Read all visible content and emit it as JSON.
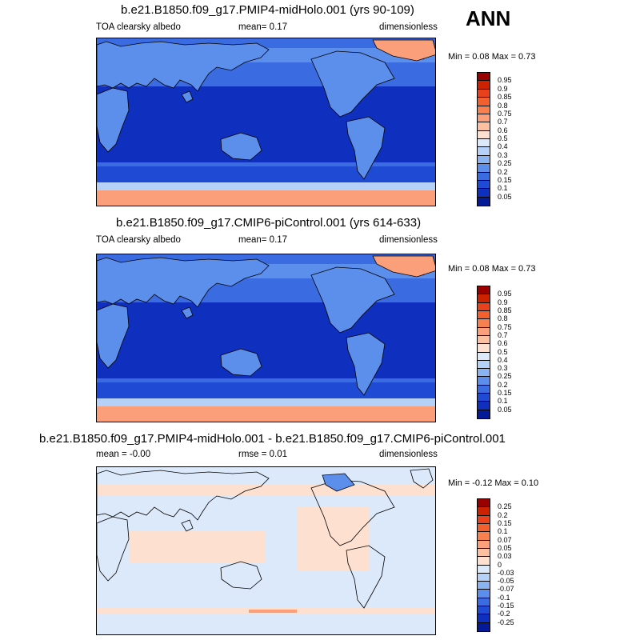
{
  "season": "ANN",
  "panels": [
    {
      "title": "b.e21.B1850.f09_g17.PMIP4-midHolo.001 (yrs 90-109)",
      "left_label": "TOA clearsky albedo",
      "mid_label": "mean=   0.17",
      "right_label": "dimensionless",
      "minmax": "Min =   0.08 Max =   0.73",
      "colorbar": {
        "labels": [
          "0.95",
          "0.9",
          "0.85",
          "0.8",
          "0.75",
          "0.7",
          "0.6",
          "0.5",
          "0.4",
          "0.3",
          "0.25",
          "0.2",
          "0.15",
          "0.1",
          "0.05"
        ],
        "colors": [
          "#990000",
          "#cc2200",
          "#e8411c",
          "#f2602e",
          "#f7804f",
          "#fa9f7a",
          "#fcbfa0",
          "#fde0cf",
          "#dbe9fa",
          "#b6d1f7",
          "#8ab3f2",
          "#5c8eeb",
          "#3a6be0",
          "#1f4bd4",
          "#0f2fbf",
          "#051a96"
        ]
      }
    },
    {
      "title": "b.e21.B1850.f09_g17.CMIP6-piControl.001 (yrs 614-633)",
      "left_label": "TOA clearsky albedo",
      "mid_label": "mean=   0.17",
      "right_label": "dimensionless",
      "minmax": "Min =   0.08 Max =   0.73",
      "colorbar": {
        "labels": [
          "0.95",
          "0.9",
          "0.85",
          "0.8",
          "0.75",
          "0.7",
          "0.6",
          "0.5",
          "0.4",
          "0.3",
          "0.25",
          "0.2",
          "0.15",
          "0.1",
          "0.05"
        ],
        "colors": [
          "#990000",
          "#cc2200",
          "#e8411c",
          "#f2602e",
          "#f7804f",
          "#fa9f7a",
          "#fcbfa0",
          "#fde0cf",
          "#dbe9fa",
          "#b6d1f7",
          "#8ab3f2",
          "#5c8eeb",
          "#3a6be0",
          "#1f4bd4",
          "#0f2fbf",
          "#051a96"
        ]
      }
    },
    {
      "title": "b.e21.B1850.f09_g17.PMIP4-midHolo.001 - b.e21.B1850.f09_g17.CMIP6-piControl.001",
      "left_label": "mean =  -0.00",
      "mid_label": "rmse =   0.01",
      "right_label": "dimensionless",
      "minmax": "Min =  -0.12 Max =   0.10",
      "colorbar": {
        "labels": [
          "0.25",
          "0.2",
          "0.15",
          "0.1",
          "0.07",
          "0.05",
          "0.03",
          "0",
          "-0.03",
          "-0.05",
          "-0.07",
          "-0.1",
          "-0.15",
          "-0.2",
          "-0.25"
        ],
        "colors": [
          "#990000",
          "#cc2200",
          "#e8411c",
          "#f2602e",
          "#f7804f",
          "#fa9f7a",
          "#fcbfa0",
          "#fde0cf",
          "#dbe9fa",
          "#b6d1f7",
          "#8ab3f2",
          "#5c8eeb",
          "#3a6be0",
          "#1f4bd4",
          "#0f2fbf",
          "#051a96"
        ]
      }
    }
  ]
}
